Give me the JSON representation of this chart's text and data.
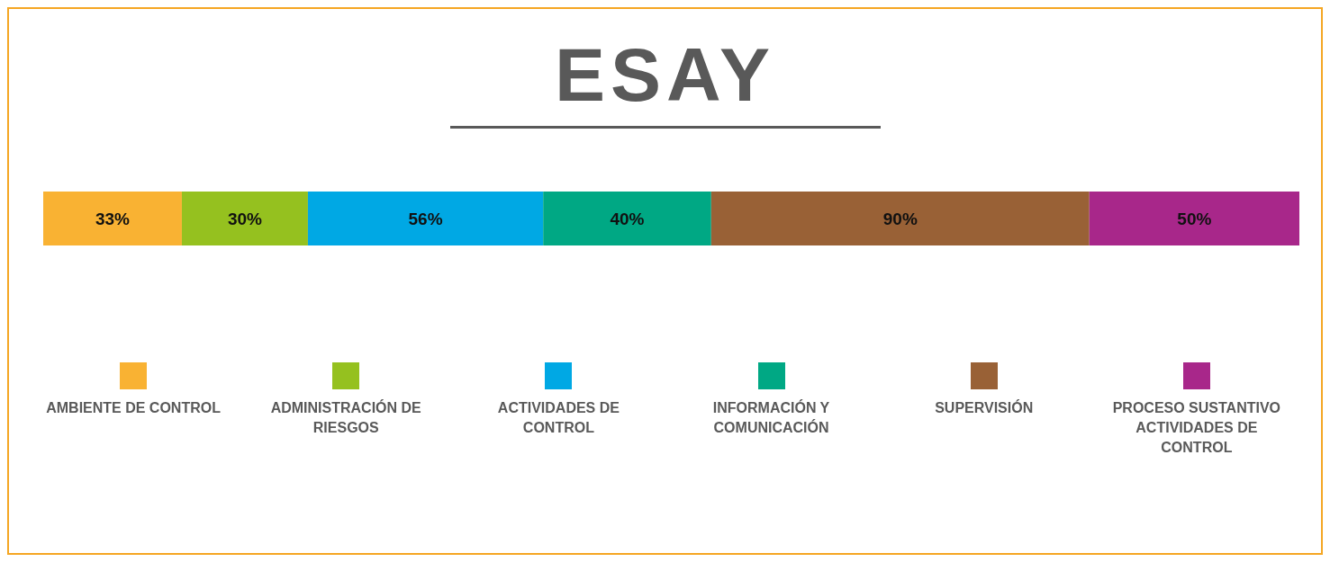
{
  "chart_data": {
    "type": "bar",
    "title": "ESAY",
    "orientation": "horizontal",
    "stacked": true,
    "categories": [
      null
    ],
    "legend": "bottom",
    "series": [
      {
        "name": "AMBIENTE DE CONTROL",
        "color": "#f9b233",
        "values": [
          33
        ],
        "value_labels": [
          "33%"
        ]
      },
      {
        "name": "ADMINISTRACIÓN DE RIESGOS",
        "color": "#95c11f",
        "values": [
          30
        ],
        "value_labels": [
          "30%"
        ]
      },
      {
        "name": "ACTIVIDADES DE CONTROL",
        "color": "#00a8e4",
        "values": [
          56
        ],
        "value_labels": [
          "56%"
        ]
      },
      {
        "name": "INFORMACIÓN Y COMUNICACIÓN",
        "color": "#00a884",
        "values": [
          40
        ],
        "value_labels": [
          "40%"
        ]
      },
      {
        "name": "SUPERVISIÓN",
        "color": "#996136",
        "values": [
          90
        ],
        "value_labels": [
          "90%"
        ]
      },
      {
        "name": "PROCESO SUSTANTIVO ACTIVIDADES DE CONTROL",
        "color": "#a8278a",
        "values": [
          50
        ],
        "value_labels": [
          "50%"
        ]
      }
    ]
  }
}
